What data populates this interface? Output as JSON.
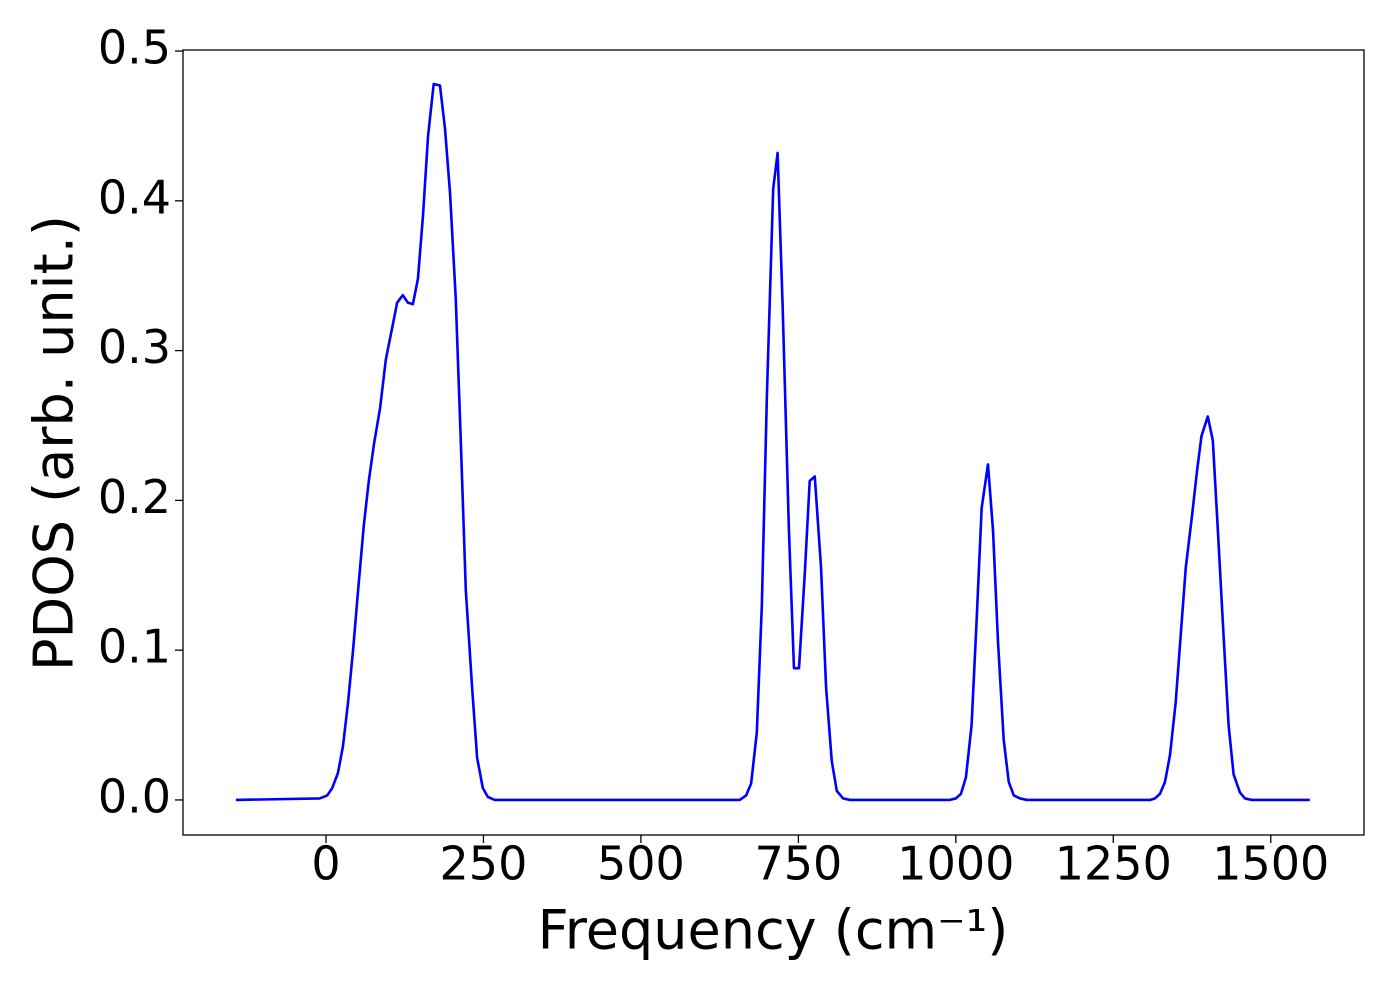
{
  "chart_data": {
    "type": "line",
    "xlabel": "Frequency (cm⁻¹)",
    "ylabel": "PDOS (arb. unit.)",
    "x": [
      -143,
      -10,
      2,
      10,
      19,
      27,
      35,
      43,
      51,
      60,
      68,
      76,
      86,
      95,
      105,
      113,
      122,
      130,
      138,
      146,
      154,
      162,
      171,
      181,
      189,
      197,
      206,
      214,
      222,
      232,
      240,
      249,
      257,
      268,
      657,
      667,
      675,
      684,
      692,
      700,
      710,
      717,
      725,
      735,
      743,
      751,
      760,
      768,
      776,
      786,
      794,
      803,
      811,
      821,
      832,
      990,
      1000,
      1008,
      1016,
      1025,
      1033,
      1041,
      1051,
      1059,
      1067,
      1076,
      1084,
      1092,
      1102,
      1113,
      1308,
      1316,
      1324,
      1332,
      1340,
      1349,
      1357,
      1365,
      1375,
      1383,
      1390,
      1400,
      1408,
      1416,
      1425,
      1433,
      1441,
      1451,
      1459,
      1470,
      1562
    ],
    "values": [
      0,
      0.001,
      0.003,
      0.008,
      0.018,
      0.036,
      0.065,
      0.1,
      0.14,
      0.183,
      0.213,
      0.237,
      0.262,
      0.294,
      0.315,
      0.332,
      0.337,
      0.332,
      0.331,
      0.348,
      0.39,
      0.443,
      0.478,
      0.477,
      0.448,
      0.405,
      0.335,
      0.24,
      0.14,
      0.075,
      0.028,
      0.008,
      0.002,
      0,
      0,
      0.003,
      0.011,
      0.045,
      0.13,
      0.27,
      0.408,
      0.432,
      0.33,
      0.18,
      0.088,
      0.088,
      0.15,
      0.213,
      0.216,
      0.155,
      0.075,
      0.026,
      0.006,
      0.001,
      0,
      0,
      0.001,
      0.004,
      0.015,
      0.05,
      0.12,
      0.195,
      0.224,
      0.18,
      0.105,
      0.04,
      0.012,
      0.003,
      0.001,
      0,
      0,
      0.001,
      0.004,
      0.012,
      0.03,
      0.065,
      0.11,
      0.155,
      0.19,
      0.22,
      0.243,
      0.256,
      0.24,
      0.18,
      0.11,
      0.05,
      0.017,
      0.005,
      0.001,
      0,
      0
    ],
    "color": "#0000ff",
    "xlim": [
      -227,
      1648
    ],
    "xticks": [
      0,
      250,
      500,
      750,
      1000,
      1250,
      1500
    ],
    "ylim": [
      -0.0234,
      0.5007
    ],
    "yticks": [
      {
        "value": 0,
        "label": "0.0"
      },
      0.1,
      0.2,
      0.3,
      0.4,
      0.5
    ]
  }
}
